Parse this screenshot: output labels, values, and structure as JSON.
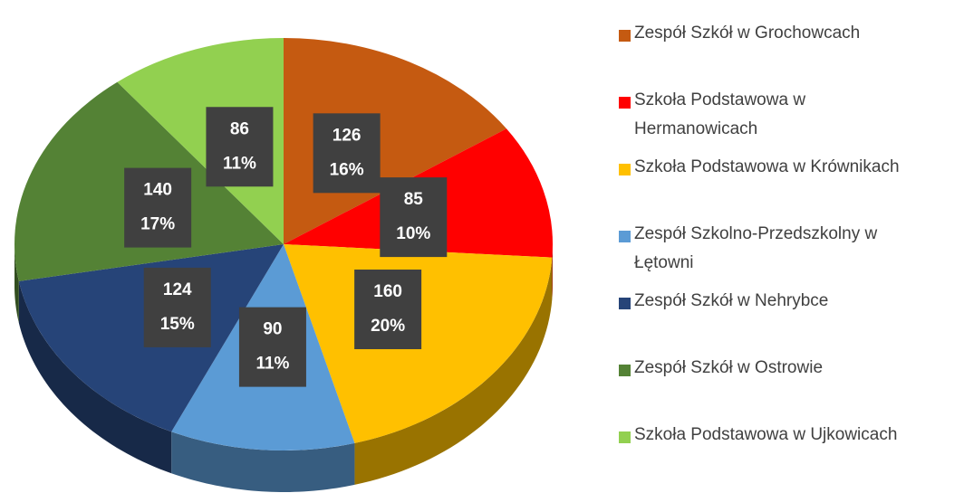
{
  "chart_data": {
    "type": "pie",
    "categories": [
      "Zespół Szkół w Grochowcach",
      "Szkoła Podstawowa w Hermanowicach",
      "Szkoła Podstawowa w Krównikach",
      "Zespół Szkolno-Przedszkolny w Łętowni",
      "Zespół Szkół w Nehrybce",
      "Zespół Szkół w Ostrowie",
      "Szkoła Podstawowa w Ujkowicach"
    ],
    "values": [
      126,
      85,
      160,
      90,
      124,
      140,
      86
    ],
    "percent_labels": [
      "16%",
      "10%",
      "20%",
      "11%",
      "15%",
      "17%",
      "11%"
    ],
    "colors": [
      "#c55a11",
      "#ff0000",
      "#ffc000",
      "#5b9bd5",
      "#264478",
      "#548235",
      "#92d050"
    ],
    "legend": "right"
  }
}
